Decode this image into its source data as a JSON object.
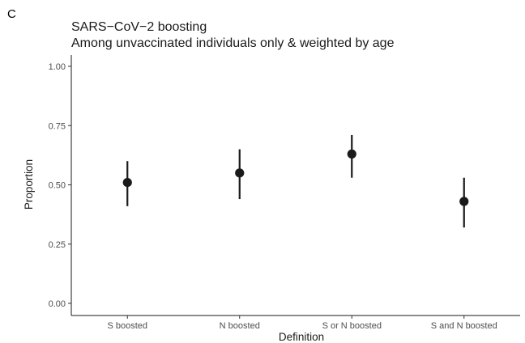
{
  "panel_label": "C",
  "chart_data": {
    "type": "pointrange",
    "title": "SARS−CoV−2 boosting",
    "subtitle": "Among unvaccinated individuals only & weighted by age",
    "xlabel": "Definition",
    "ylabel": "Proportion",
    "categories": [
      "S boosted",
      "N boosted",
      "S or N boosted",
      "S and N boosted"
    ],
    "estimate": [
      0.51,
      0.55,
      0.63,
      0.43
    ],
    "lower": [
      0.41,
      0.44,
      0.53,
      0.32
    ],
    "upper": [
      0.6,
      0.65,
      0.71,
      0.53
    ],
    "ylim": [
      0,
      1
    ],
    "yticks": [
      0,
      0.25,
      0.5,
      0.75,
      1
    ],
    "ytick_labels": [
      "0.00",
      "0.25",
      "0.50",
      "0.75",
      "1.00"
    ],
    "grid": false,
    "colors": {
      "points": "#1a1a1a",
      "axis": "#1a1a1a"
    }
  }
}
